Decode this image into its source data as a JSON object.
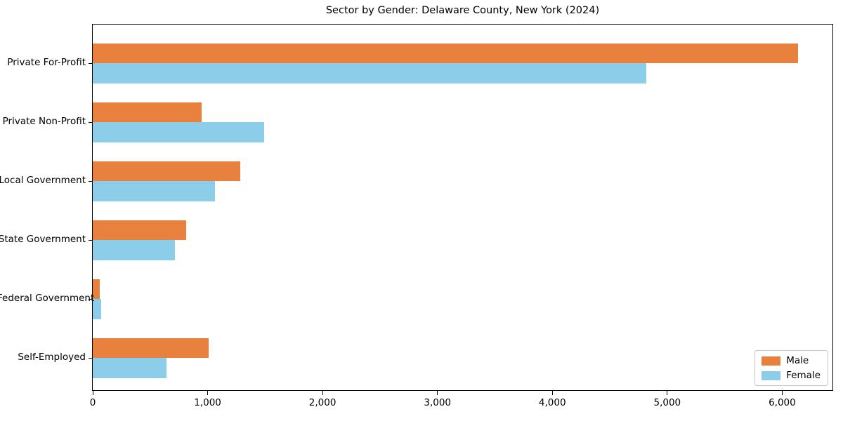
{
  "chart_data": {
    "type": "bar",
    "orientation": "horizontal",
    "title": "Sector by Gender: Delaware County, New York (2024)",
    "categories": [
      "Private For-Profit",
      "Private Non-Profit",
      "Local Government",
      "State Government",
      "Federal Government",
      "Self-Employed"
    ],
    "series": [
      {
        "name": "Male",
        "color": "#E8803E",
        "values": [
          6140,
          950,
          1285,
          815,
          60,
          1010
        ]
      },
      {
        "name": "Female",
        "color": "#8CCEE9",
        "values": [
          4820,
          1490,
          1065,
          715,
          75,
          640
        ]
      }
    ],
    "xlim": [
      0,
      6450
    ],
    "xticks": [
      0,
      1000,
      2000,
      3000,
      4000,
      5000,
      6000
    ],
    "xtick_labels": [
      "0",
      "1,000",
      "2,000",
      "3,000",
      "4,000",
      "5,000",
      "6,000"
    ],
    "grid": false,
    "legend": {
      "position": "lower-right",
      "entries": [
        "Male",
        "Female"
      ]
    }
  }
}
